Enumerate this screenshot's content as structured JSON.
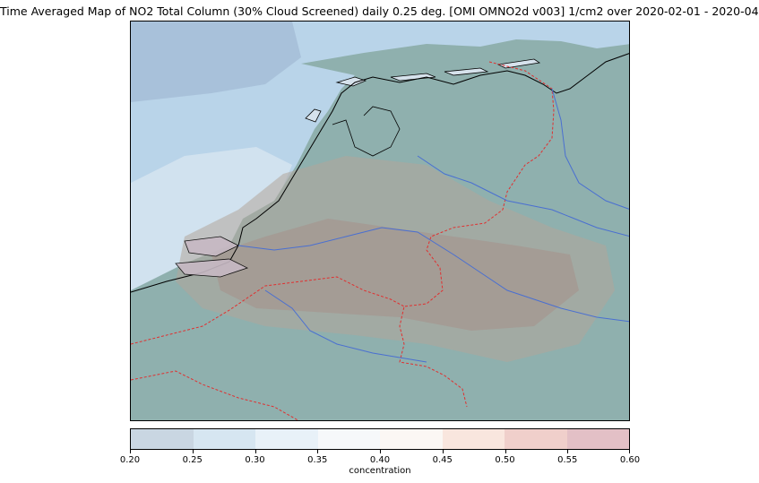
{
  "title": "Time Averaged Map of NO2 Total Column (30% Cloud Screened) daily 0.25 deg. [OMI OMNO2d v003] 1/cm2 over 2020-02-01 - 2020-04-01",
  "colorbar": {
    "label": "concentration",
    "ticks": [
      "0.20",
      "0.25",
      "0.30",
      "0.35",
      "0.40",
      "0.45",
      "0.50",
      "0.55",
      "0.60"
    ],
    "colors": [
      "#c9d6e2",
      "#d6e6f1",
      "#e8f1f8",
      "#f6f8fa",
      "#fbf7f4",
      "#f9e6de",
      "#f0cfcb",
      "#e3c0c6"
    ]
  },
  "map": {
    "colors": {
      "sea": "#b7d3e8",
      "land": "#8fb0ae",
      "coastline": "#000000",
      "border": "#e03030",
      "river": "#4a6fd1",
      "high_no2": "#a58f8a",
      "mid_no2": "#b5a89a"
    }
  }
}
